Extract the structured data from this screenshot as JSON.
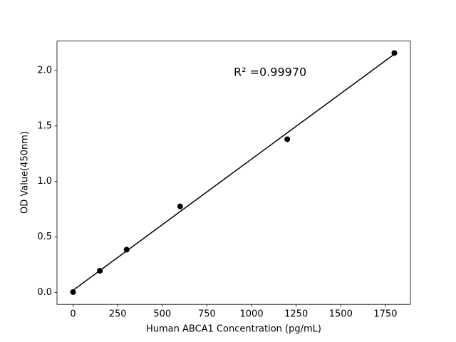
{
  "chart_data": {
    "type": "scatter",
    "xlabel": "Human ABCA1 Concentration (pg/mL)",
    "ylabel": "OD Value(450nm)",
    "annotation": "R² =0.99970",
    "color": "#000000",
    "points": {
      "x": [
        0,
        150,
        300,
        600,
        1200,
        1800
      ],
      "values": [
        0.003,
        0.195,
        0.385,
        0.775,
        1.38,
        2.157
      ]
    },
    "fit_line": {
      "x": [
        0,
        1800
      ],
      "values": [
        0.019,
        2.147
      ]
    },
    "xlim": [
      -90,
      1890
    ],
    "ylim": [
      -0.108,
      2.265
    ],
    "xticks": [
      0,
      250,
      500,
      750,
      1000,
      1250,
      1500,
      1750
    ],
    "yticks": [
      {
        "value": 0,
        "label": "0.0"
      },
      0.5,
      {
        "value": 1,
        "label": "1.0"
      },
      1.5,
      {
        "value": 2,
        "label": "2.0"
      }
    ]
  }
}
